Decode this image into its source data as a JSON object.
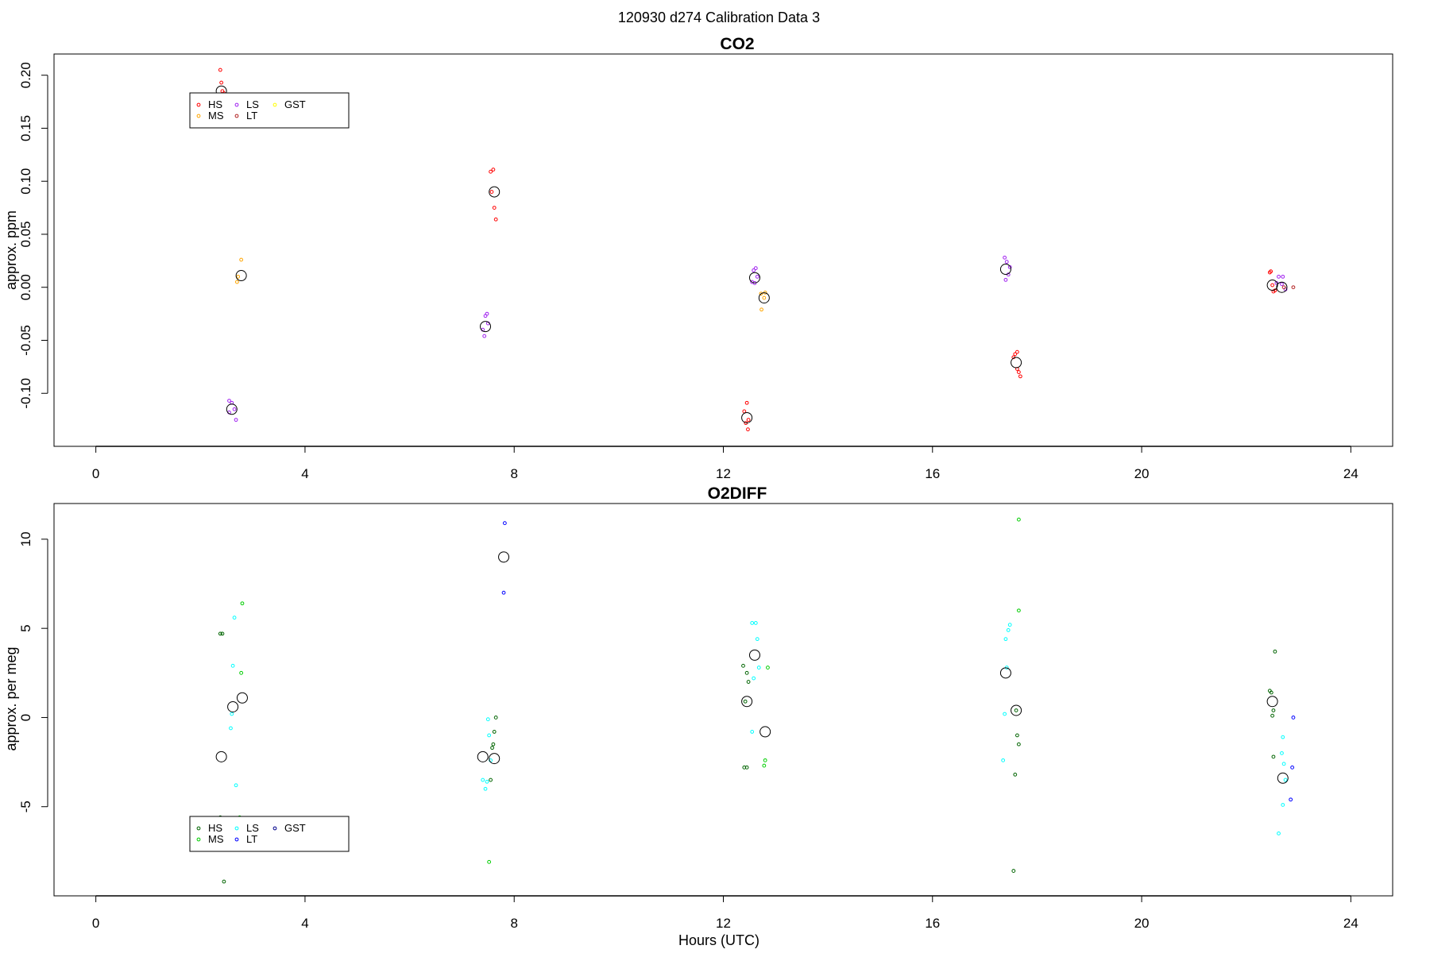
{
  "page_title": "120930   d274   Calibration Data 3",
  "chart_data": [
    {
      "type": "scatter",
      "title": "CO2",
      "xlabel": "",
      "ylabel": "approx. ppm",
      "xlim": [
        -0.8,
        24.8
      ],
      "ylim": [
        -0.15,
        0.22
      ],
      "xticks": [
        0,
        4,
        8,
        12,
        16,
        20,
        24
      ],
      "yticks": [
        -0.1,
        -0.05,
        0.0,
        0.05,
        0.1,
        0.15,
        0.2
      ],
      "ytick_labels": [
        "-0.10",
        "-0.05",
        "0.00",
        "0.05",
        "0.10",
        "0.15",
        "0.20"
      ],
      "legend_position": "top-left",
      "legend": [
        {
          "label": "HS",
          "color": "#ff0000"
        },
        {
          "label": "MS",
          "color": "#ffa500"
        },
        {
          "label": "LS",
          "color": "#a020f0"
        },
        {
          "label": "LT",
          "color": "#b22222"
        },
        {
          "label": "GST",
          "color": "#ffff00"
        }
      ],
      "series": [
        {
          "name": "HS",
          "color": "#ff0000",
          "points": [
            [
              2.38,
              0.205
            ],
            [
              2.4,
              0.193
            ],
            [
              2.42,
              0.185
            ],
            [
              2.45,
              0.183
            ],
            [
              7.55,
              0.109
            ],
            [
              7.6,
              0.111
            ],
            [
              7.57,
              0.09
            ],
            [
              7.62,
              0.075
            ],
            [
              7.65,
              0.064
            ],
            [
              12.45,
              -0.109
            ],
            [
              12.4,
              -0.117
            ],
            [
              12.48,
              -0.125
            ],
            [
              12.43,
              -0.128
            ],
            [
              12.47,
              -0.134
            ],
            [
              17.62,
              -0.061
            ],
            [
              17.58,
              -0.063
            ],
            [
              17.55,
              -0.066
            ],
            [
              17.65,
              -0.08
            ],
            [
              17.62,
              -0.077
            ],
            [
              17.68,
              -0.084
            ],
            [
              22.45,
              0.014
            ],
            [
              22.47,
              0.015
            ],
            [
              22.5,
              0.002
            ],
            [
              22.52,
              -0.004
            ],
            [
              22.55,
              -0.003
            ]
          ]
        },
        {
          "name": "MS",
          "color": "#ffa500",
          "points": [
            [
              2.78,
              0.026
            ],
            [
              2.72,
              0.01
            ],
            [
              2.7,
              0.005
            ],
            [
              12.72,
              -0.006
            ],
            [
              12.78,
              -0.01
            ],
            [
              12.73,
              -0.021
            ],
            [
              12.8,
              -0.005
            ]
          ]
        },
        {
          "name": "LS",
          "color": "#a020f0",
          "points": [
            [
              2.55,
              -0.107
            ],
            [
              2.6,
              -0.109
            ],
            [
              2.65,
              -0.115
            ],
            [
              2.55,
              -0.118
            ],
            [
              2.68,
              -0.125
            ],
            [
              7.48,
              -0.025
            ],
            [
              7.45,
              -0.027
            ],
            [
              7.4,
              -0.04
            ],
            [
              7.43,
              -0.046
            ],
            [
              7.5,
              -0.034
            ],
            [
              12.62,
              0.018
            ],
            [
              12.58,
              0.016
            ],
            [
              12.55,
              0.005
            ],
            [
              12.6,
              0.004
            ],
            [
              12.65,
              0.01
            ],
            [
              17.38,
              0.028
            ],
            [
              17.42,
              0.024
            ],
            [
              17.45,
              0.012
            ],
            [
              17.4,
              0.007
            ],
            [
              17.48,
              0.019
            ],
            [
              22.62,
              0.01
            ],
            [
              22.7,
              0.01
            ],
            [
              22.68,
              0.003
            ],
            [
              22.75,
              -0.002
            ],
            [
              22.58,
              0.004
            ]
          ]
        },
        {
          "name": "LT",
          "color": "#b22222",
          "points": [
            [
              22.9,
              0.0
            ],
            [
              22.72,
              0.0
            ]
          ]
        },
        {
          "name": "GST",
          "color": "#ffff00",
          "points": []
        }
      ],
      "means": [
        [
          2.4,
          0.185
        ],
        [
          2.78,
          0.011
        ],
        [
          2.6,
          -0.115
        ],
        [
          7.62,
          0.09
        ],
        [
          7.45,
          -0.037
        ],
        [
          12.45,
          -0.123
        ],
        [
          12.6,
          0.009
        ],
        [
          12.78,
          -0.01
        ],
        [
          17.4,
          0.017
        ],
        [
          17.6,
          -0.071
        ],
        [
          22.5,
          0.002
        ],
        [
          22.68,
          0.0
        ]
      ]
    },
    {
      "type": "scatter",
      "title": "O2DIFF",
      "xlabel": "Hours (UTC)",
      "ylabel": "approx. per meg",
      "xlim": [
        -0.8,
        24.8
      ],
      "ylim": [
        -10,
        12
      ],
      "xticks": [
        0,
        4,
        8,
        12,
        16,
        20,
        24
      ],
      "yticks": [
        -5,
        0,
        5,
        10
      ],
      "ytick_labels": [
        "-5",
        "0",
        "5",
        "10"
      ],
      "legend_position": "bottom-left",
      "legend": [
        {
          "label": "HS",
          "color": "#006400"
        },
        {
          "label": "MS",
          "color": "#00cd00"
        },
        {
          "label": "LS",
          "color": "#00ffff"
        },
        {
          "label": "LT",
          "color": "#0000ff"
        },
        {
          "label": "GST",
          "color": "#00008b"
        }
      ],
      "series": [
        {
          "name": "HS",
          "color": "#006400",
          "points": [
            [
              2.38,
              4.7
            ],
            [
              2.42,
              4.7
            ],
            [
              2.45,
              -9.2
            ],
            [
              2.38,
              -5.6
            ],
            [
              7.65,
              0.0
            ],
            [
              7.62,
              -0.8
            ],
            [
              7.6,
              -1.5
            ],
            [
              7.55,
              -3.5
            ],
            [
              7.58,
              -1.7
            ],
            [
              12.38,
              2.9
            ],
            [
              12.45,
              2.5
            ],
            [
              12.48,
              2.0
            ],
            [
              12.42,
              0.9
            ],
            [
              12.4,
              -2.8
            ],
            [
              12.45,
              -2.8
            ],
            [
              17.6,
              0.4
            ],
            [
              17.62,
              -1.0
            ],
            [
              17.65,
              -1.5
            ],
            [
              17.58,
              -3.2
            ],
            [
              17.55,
              -8.6
            ],
            [
              22.45,
              1.5
            ],
            [
              22.48,
              1.4
            ],
            [
              22.52,
              0.4
            ],
            [
              22.5,
              0.1
            ],
            [
              22.55,
              3.7
            ],
            [
              22.52,
              -2.2
            ]
          ]
        },
        {
          "name": "MS",
          "color": "#00cd00",
          "points": [
            [
              2.8,
              6.4
            ],
            [
              2.78,
              2.5
            ],
            [
              2.75,
              -5.6
            ],
            [
              7.52,
              -8.1
            ],
            [
              12.85,
              2.8
            ],
            [
              12.8,
              -2.4
            ],
            [
              12.78,
              -2.7
            ],
            [
              17.65,
              11.1
            ],
            [
              17.65,
              6.0
            ]
          ]
        },
        {
          "name": "LS",
          "color": "#00ffff",
          "points": [
            [
              2.65,
              5.6
            ],
            [
              2.62,
              2.9
            ],
            [
              2.6,
              0.2
            ],
            [
              2.58,
              -0.6
            ],
            [
              2.68,
              -3.8
            ],
            [
              7.5,
              -0.1
            ],
            [
              7.52,
              -1.0
            ],
            [
              7.55,
              -2.4
            ],
            [
              7.48,
              -3.6
            ],
            [
              7.45,
              -4.0
            ],
            [
              7.4,
              -3.5
            ],
            [
              12.55,
              5.3
            ],
            [
              12.62,
              5.3
            ],
            [
              12.65,
              4.4
            ],
            [
              12.58,
              2.2
            ],
            [
              12.68,
              2.8
            ],
            [
              12.55,
              -0.8
            ],
            [
              17.48,
              5.2
            ],
            [
              17.45,
              4.9
            ],
            [
              17.4,
              4.4
            ],
            [
              17.42,
              2.8
            ],
            [
              17.38,
              0.2
            ],
            [
              17.35,
              -2.4
            ],
            [
              22.7,
              -1.1
            ],
            [
              22.68,
              -2.0
            ],
            [
              22.72,
              -2.6
            ],
            [
              22.75,
              -3.5
            ],
            [
              22.7,
              -4.9
            ],
            [
              22.62,
              -6.5
            ]
          ]
        },
        {
          "name": "LT",
          "color": "#0000ff",
          "points": [
            [
              7.82,
              10.9
            ],
            [
              7.8,
              7.0
            ],
            [
              22.9,
              0.0
            ],
            [
              22.88,
              -2.8
            ],
            [
              22.85,
              -4.6
            ]
          ]
        },
        {
          "name": "GST",
          "color": "#00008b",
          "points": []
        }
      ],
      "means": [
        [
          2.4,
          -2.2
        ],
        [
          2.62,
          0.6
        ],
        [
          2.8,
          1.1
        ],
        [
          7.8,
          9.0
        ],
        [
          7.4,
          -2.2
        ],
        [
          7.62,
          -2.3
        ],
        [
          12.45,
          0.9
        ],
        [
          12.6,
          3.5
        ],
        [
          12.8,
          -0.8
        ],
        [
          17.4,
          2.5
        ],
        [
          17.6,
          0.4
        ],
        [
          22.5,
          0.9
        ],
        [
          22.7,
          -3.4
        ]
      ]
    }
  ]
}
